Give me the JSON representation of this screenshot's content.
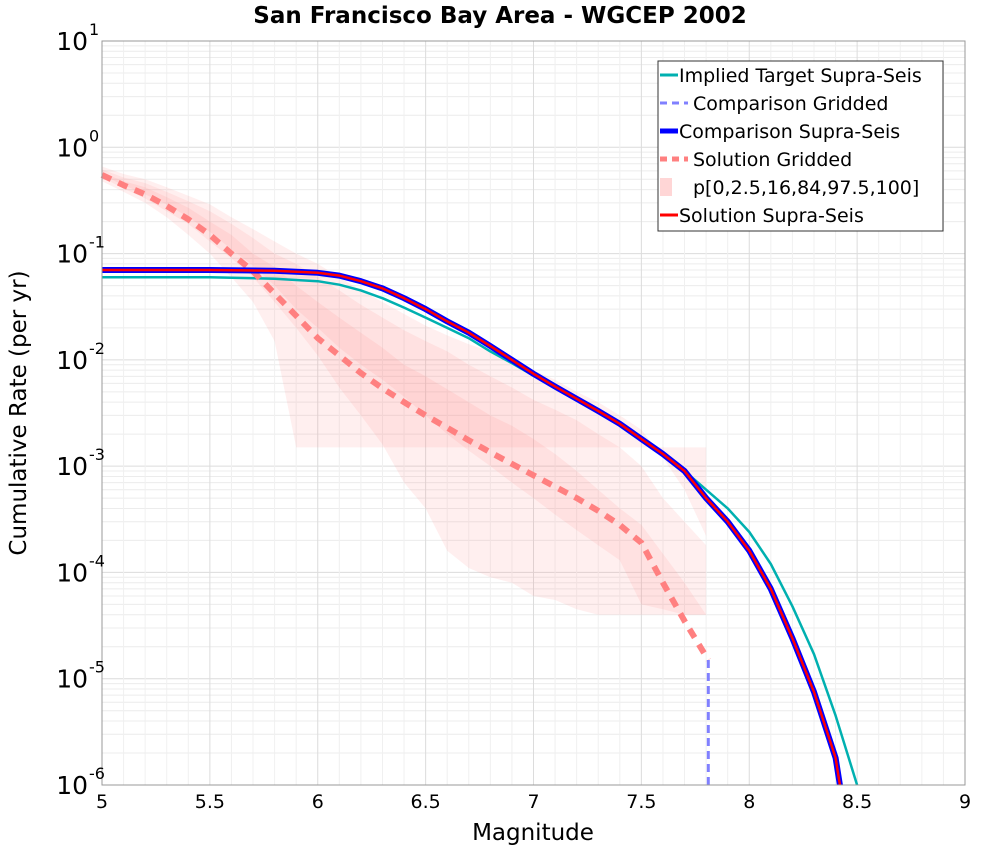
{
  "chart_data": {
    "type": "line",
    "title": "San Francisco Bay Area - WGCEP 2002",
    "xlabel": "Magnitude",
    "ylabel": "Cumulative Rate (per yr)",
    "xlim": [
      5,
      9
    ],
    "ylim": [
      1e-06,
      10
    ],
    "yscale": "log",
    "grid": true,
    "legend_position": "top-right",
    "x_ticks": [
      "5",
      "5.5",
      "6",
      "6.5",
      "7",
      "7.5",
      "8",
      "8.5",
      "9"
    ],
    "y_ticks": [
      {
        "base": "10",
        "exp": "1"
      },
      {
        "base": "10",
        "exp": "0"
      },
      {
        "base": "10",
        "exp": "-1"
      },
      {
        "base": "10",
        "exp": "-2"
      },
      {
        "base": "10",
        "exp": "-3"
      },
      {
        "base": "10",
        "exp": "-4"
      },
      {
        "base": "10",
        "exp": "-5"
      },
      {
        "base": "10",
        "exp": "-6"
      }
    ],
    "percentile_bands": {
      "name": "p[0,2.5,16,84,97.5,100]",
      "color": "#ff8080",
      "x": [
        5.0,
        5.1,
        5.2,
        5.3,
        5.4,
        5.5,
        5.6,
        5.7,
        5.8,
        5.9,
        6.0,
        6.1,
        6.2,
        6.3,
        6.4,
        6.5,
        6.6,
        6.7,
        6.8,
        6.9,
        7.0,
        7.1,
        7.2,
        7.3,
        7.4,
        7.5,
        7.6,
        7.7,
        7.8
      ],
      "p0": [
        0.48,
        0.38,
        0.3,
        0.22,
        0.15,
        0.1,
        0.06,
        0.035,
        0.015,
        0.0015,
        0.0015,
        0.0015,
        0.0015,
        0.0015,
        0.0015,
        0.0015,
        0.0015,
        0.0015,
        0.0015,
        0.0015,
        0.0015,
        0.0015,
        0.0015,
        0.0015,
        0.0015,
        0.0015,
        0.0015,
        0.0015,
        0.0015
      ],
      "p2_5": [
        0.52,
        0.41,
        0.33,
        0.25,
        0.19,
        0.13,
        0.09,
        0.06,
        0.035,
        0.02,
        0.011,
        0.0055,
        0.003,
        0.0016,
        0.0007,
        0.0004,
        0.00016,
        0.00011,
        9e-05,
        8e-05,
        6e-05,
        5.5e-05,
        4.5e-05,
        4e-05,
        4e-05,
        4e-05,
        4e-05,
        4e-05,
        4e-05
      ],
      "p16": [
        0.55,
        0.44,
        0.36,
        0.29,
        0.22,
        0.16,
        0.11,
        0.077,
        0.05,
        0.03,
        0.02,
        0.013,
        0.009,
        0.0065,
        0.0045,
        0.003,
        0.002,
        0.0014,
        0.001,
        0.0007,
        0.0005,
        0.00035,
        0.00025,
        0.00018,
        0.00013,
        5e-05,
        4.5e-05,
        4e-05,
        4e-05
      ],
      "p84": [
        0.58,
        0.48,
        0.42,
        0.34,
        0.27,
        0.2,
        0.15,
        0.1,
        0.075,
        0.05,
        0.035,
        0.025,
        0.018,
        0.013,
        0.009,
        0.007,
        0.0053,
        0.004,
        0.003,
        0.0024,
        0.0018,
        0.0013,
        0.0009,
        0.0006,
        0.0004,
        0.00028,
        0.00015,
        8e-05,
        4e-05
      ],
      "p97_5": [
        0.62,
        0.52,
        0.46,
        0.38,
        0.31,
        0.25,
        0.19,
        0.14,
        0.1,
        0.08,
        0.06,
        0.045,
        0.033,
        0.025,
        0.019,
        0.015,
        0.012,
        0.009,
        0.007,
        0.0055,
        0.0042,
        0.0034,
        0.0027,
        0.002,
        0.0015,
        0.001,
        0.0005,
        0.0003,
        0.00018
      ],
      "p100": [
        0.66,
        0.56,
        0.5,
        0.42,
        0.35,
        0.29,
        0.22,
        0.17,
        0.13,
        0.1,
        0.08,
        0.06,
        0.045,
        0.035,
        0.027,
        0.021,
        0.017,
        0.014,
        0.012,
        0.01,
        0.008,
        0.0065,
        0.005,
        0.004,
        0.003,
        0.0022,
        0.0012,
        0.0006,
        0.00022
      ]
    },
    "series": [
      {
        "name": "Implied Target Supra-Seis",
        "color": "#00b0b0",
        "style": "solid",
        "width": 2.5,
        "x": [
          5.0,
          5.5,
          5.8,
          6.0,
          6.1,
          6.2,
          6.3,
          6.4,
          6.5,
          6.6,
          6.7,
          6.8,
          6.9,
          7.0,
          7.1,
          7.2,
          7.3,
          7.4,
          7.5,
          7.6,
          7.7,
          7.8,
          7.9,
          8.0,
          8.1,
          8.2,
          8.3,
          8.4,
          8.5
        ],
        "y": [
          0.06,
          0.06,
          0.058,
          0.055,
          0.051,
          0.045,
          0.038,
          0.031,
          0.025,
          0.02,
          0.016,
          0.012,
          0.0093,
          0.0071,
          0.0055,
          0.0043,
          0.0033,
          0.0025,
          0.0018,
          0.0013,
          0.0009,
          0.0006,
          0.0004,
          0.00024,
          0.00012,
          4.8e-05,
          1.7e-05,
          4.5e-06,
          1e-06
        ]
      },
      {
        "name": "Comparison Gridded",
        "color": "#8080ff",
        "style": "dashed",
        "width": 3,
        "x": [
          7.81,
          7.81
        ],
        "y": [
          1.5e-05,
          1e-06
        ]
      },
      {
        "name": "Comparison Supra-Seis",
        "color": "#0000ff",
        "style": "solid",
        "width": 6,
        "x": [
          5.0,
          5.5,
          5.8,
          6.0,
          6.1,
          6.2,
          6.3,
          6.4,
          6.5,
          6.6,
          6.7,
          6.8,
          6.9,
          7.0,
          7.1,
          7.2,
          7.3,
          7.4,
          7.5,
          7.6,
          7.7,
          7.8,
          7.9,
          8.0,
          8.1,
          8.2,
          8.3,
          8.4,
          8.42
        ],
        "y": [
          0.07,
          0.07,
          0.069,
          0.066,
          0.062,
          0.055,
          0.047,
          0.038,
          0.03,
          0.023,
          0.018,
          0.0135,
          0.01,
          0.0074,
          0.0056,
          0.0043,
          0.0033,
          0.0025,
          0.0018,
          0.0013,
          0.0009,
          0.0005,
          0.0003,
          0.00016,
          7e-05,
          2.4e-05,
          7.5e-06,
          1.8e-06,
          1e-06
        ]
      },
      {
        "name": "Solution Gridded",
        "color": "#ff8080",
        "style": "dashed",
        "width": 6,
        "x": [
          5.0,
          5.1,
          5.2,
          5.3,
          5.4,
          5.5,
          5.6,
          5.7,
          5.8,
          5.9,
          6.0,
          6.1,
          6.2,
          6.3,
          6.4,
          6.5,
          6.6,
          6.7,
          6.8,
          6.9,
          7.0,
          7.1,
          7.2,
          7.3,
          7.4,
          7.5,
          7.6,
          7.7,
          7.81
        ],
        "y": [
          0.55,
          0.44,
          0.36,
          0.28,
          0.21,
          0.15,
          0.1,
          0.068,
          0.042,
          0.026,
          0.016,
          0.011,
          0.0075,
          0.0054,
          0.004,
          0.003,
          0.0023,
          0.00175,
          0.00135,
          0.00105,
          0.00082,
          0.00064,
          0.0005,
          0.00038,
          0.00028,
          0.00019,
          8e-05,
          3.5e-05,
          1.5e-05
        ]
      },
      {
        "name": "Solution Supra-Seis",
        "color": "#ff0000",
        "style": "solid",
        "width": 2.5,
        "x": [
          5.0,
          5.5,
          5.8,
          6.0,
          6.1,
          6.2,
          6.3,
          6.4,
          6.5,
          6.6,
          6.7,
          6.8,
          6.9,
          7.0,
          7.1,
          7.2,
          7.3,
          7.4,
          7.5,
          7.6,
          7.7,
          7.8,
          7.9,
          8.0,
          8.1,
          8.2,
          8.3,
          8.4,
          8.42
        ],
        "y": [
          0.07,
          0.07,
          0.069,
          0.066,
          0.062,
          0.055,
          0.047,
          0.038,
          0.03,
          0.023,
          0.018,
          0.0135,
          0.01,
          0.0074,
          0.0056,
          0.0043,
          0.0033,
          0.0025,
          0.0018,
          0.0013,
          0.0009,
          0.0005,
          0.0003,
          0.00016,
          7e-05,
          2.4e-05,
          7.5e-06,
          1.8e-06,
          1e-06
        ]
      }
    ],
    "legend": [
      {
        "label": "Implied Target Supra-Seis",
        "color": "#00b0b0",
        "style": "solid"
      },
      {
        "label": "Comparison Gridded",
        "color": "#8080ff",
        "style": "dashed"
      },
      {
        "label": "Comparison Supra-Seis",
        "color": "#0000ff",
        "style": "solid-thick"
      },
      {
        "label": "Solution Gridded",
        "color": "#ff8080",
        "style": "dashed-thick"
      },
      {
        "label": "p[0,2.5,16,84,97.5,100]",
        "color": "#ffd6d6",
        "style": "band"
      },
      {
        "label": "Solution Supra-Seis",
        "color": "#ff0000",
        "style": "solid"
      }
    ]
  }
}
